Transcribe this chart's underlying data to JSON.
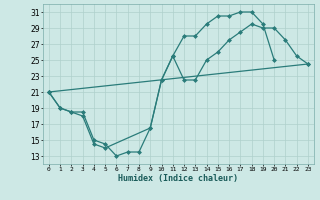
{
  "xlabel": "Humidex (Indice chaleur)",
  "xlim": [
    -0.5,
    23.5
  ],
  "ylim": [
    12,
    32
  ],
  "yticks": [
    13,
    15,
    17,
    19,
    21,
    23,
    25,
    27,
    29,
    31
  ],
  "xticks": [
    0,
    1,
    2,
    3,
    4,
    5,
    6,
    7,
    8,
    9,
    10,
    11,
    12,
    13,
    14,
    15,
    16,
    17,
    18,
    19,
    20,
    21,
    22,
    23
  ],
  "bg_color": "#cde8e5",
  "grid_color": "#afd0cc",
  "line_color": "#2a7c7a",
  "line1_x": [
    0,
    1,
    2,
    3,
    4,
    5,
    6,
    7,
    8,
    9,
    10,
    11,
    12,
    13,
    14,
    15,
    16,
    17,
    18,
    19,
    20
  ],
  "line1_y": [
    21,
    19,
    18.5,
    18.5,
    15,
    14.5,
    13,
    13.5,
    13.5,
    16.5,
    22.5,
    25.5,
    28,
    28,
    29.5,
    30.5,
    30.5,
    31,
    31,
    29.5,
    25
  ],
  "line2_x": [
    0,
    1,
    2,
    3,
    4,
    5,
    9,
    10,
    11,
    12,
    13,
    14,
    15,
    16,
    17,
    18,
    19,
    20,
    21,
    22,
    23
  ],
  "line2_y": [
    21,
    19,
    18.5,
    18,
    14.5,
    14,
    16.5,
    22.5,
    25.5,
    22.5,
    22.5,
    25,
    26,
    27.5,
    28.5,
    29.5,
    29,
    29,
    27.5,
    25.5,
    24.5
  ],
  "line3_x": [
    0,
    23
  ],
  "line3_y": [
    21,
    24.5
  ]
}
